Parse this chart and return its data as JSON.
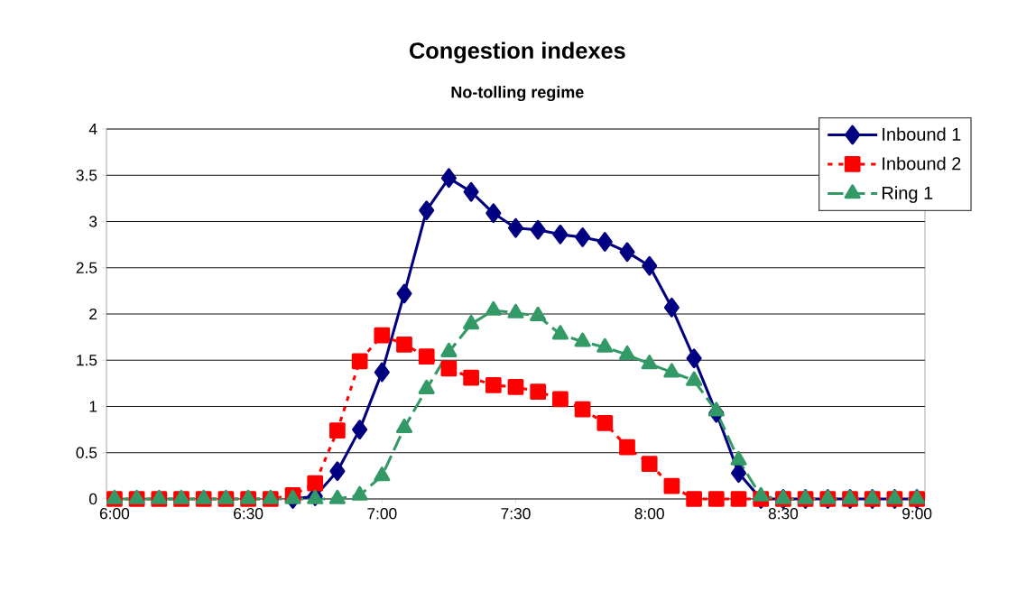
{
  "chart_data": {
    "type": "line",
    "title": "Congestion indexes",
    "subtitle": "No-tolling regime",
    "x": [
      6.0,
      6.0833,
      6.1667,
      6.25,
      6.3333,
      6.4167,
      6.5,
      6.5833,
      6.6667,
      6.75,
      6.8333,
      6.9167,
      7.0,
      7.0833,
      7.1667,
      7.25,
      7.3333,
      7.4167,
      7.5,
      7.5833,
      7.6667,
      7.75,
      7.8333,
      7.9167,
      8.0,
      8.0833,
      8.1667,
      8.25,
      8.3333,
      8.4167,
      8.5,
      8.5833,
      8.6667,
      8.75,
      8.8333,
      8.9167,
      9.0
    ],
    "series": [
      {
        "name": "Inbound 1",
        "color": "#000080",
        "marker": "diamond",
        "line_style": "solid",
        "values": [
          null,
          null,
          null,
          null,
          null,
          null,
          null,
          null,
          0,
          0.03,
          0.3,
          0.75,
          1.37,
          2.22,
          3.12,
          3.47,
          3.32,
          3.09,
          2.93,
          2.91,
          2.86,
          2.83,
          2.78,
          2.67,
          2.52,
          2.07,
          1.52,
          0.93,
          0.28,
          0,
          0,
          0,
          0,
          0,
          0,
          0,
          0
        ]
      },
      {
        "name": "Inbound 2",
        "color": "#ff0000",
        "marker": "square",
        "line_style": "dotted",
        "values": [
          0,
          0,
          0,
          0,
          0,
          0,
          0,
          0,
          0.04,
          0.17,
          0.74,
          1.49,
          1.77,
          1.67,
          1.54,
          1.41,
          1.31,
          1.23,
          1.21,
          1.16,
          1.08,
          0.97,
          0.82,
          0.56,
          0.38,
          0.14,
          0,
          0,
          0,
          0,
          0,
          0,
          0,
          0,
          0,
          0,
          0
        ]
      },
      {
        "name": "Ring 1",
        "color": "#339966",
        "marker": "triangle",
        "line_style": "dashed",
        "values": [
          0,
          0,
          0,
          0,
          0,
          0,
          0,
          0,
          0,
          0,
          0,
          0.04,
          0.25,
          0.77,
          1.19,
          1.59,
          1.89,
          2.04,
          2.01,
          1.98,
          1.78,
          1.7,
          1.64,
          1.56,
          1.46,
          1.37,
          1.28,
          0.95,
          0.42,
          0.03,
          0,
          0,
          0,
          0,
          0,
          0,
          0
        ]
      }
    ],
    "xlim": [
      5.97,
      9.03
    ],
    "xticks": [
      {
        "value": 6,
        "label": "6:00"
      },
      {
        "value": 6.5,
        "label": "6:30"
      },
      {
        "value": 7,
        "label": "7:00"
      },
      {
        "value": 7.5,
        "label": "7:30"
      },
      {
        "value": 8,
        "label": "8:00"
      },
      {
        "value": 8.5,
        "label": "8:30"
      },
      {
        "value": 9,
        "label": "9:00"
      }
    ],
    "ylim": [
      0,
      4
    ],
    "yticks": [
      0,
      0.5,
      1,
      1.5,
      2,
      2.5,
      3,
      3.5,
      4
    ],
    "grid": "y",
    "legend": "top right"
  }
}
